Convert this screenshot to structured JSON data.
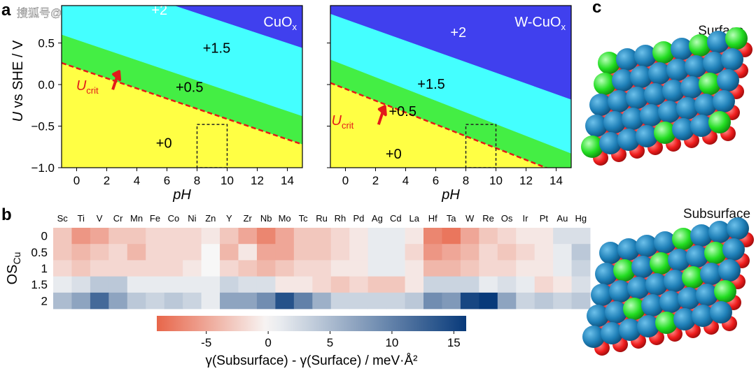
{
  "watermark": "搜狐号@铭铎科学",
  "panel_labels": {
    "a": "a",
    "b": "b",
    "c": "c"
  },
  "chart_data": [
    {
      "type": "area",
      "name": "Pourbaix diagram CuOx",
      "series_label": "CuOx",
      "xlabel": "pH",
      "ylabel": "U vs SHE / V",
      "xlim": [
        -1,
        15
      ],
      "ylim": [
        -1.0,
        0.95
      ],
      "xticks": [
        0,
        2,
        4,
        6,
        8,
        10,
        12,
        14
      ],
      "yticks": [
        -1.0,
        -0.5,
        0.0,
        0.5
      ],
      "regions": [
        {
          "label": "+0",
          "color": "#ffff44"
        },
        {
          "label": "+0.5",
          "color": "#44ee44"
        },
        {
          "label": "+1.5",
          "color": "#44ffff"
        },
        {
          "label": "+2",
          "color": "#4040ee"
        }
      ],
      "boundaries": [
        {
          "between": "+0/+0.5",
          "x": [
            -1,
            15
          ],
          "y": [
            0.26,
            -0.72
          ]
        },
        {
          "between": "+0.5/+1.5",
          "x": [
            -1,
            15
          ],
          "y": [
            0.6,
            -0.38
          ]
        },
        {
          "between": "+1.5/+2",
          "x": [
            -1,
            15
          ],
          "y": [
            1.4,
            0.44
          ]
        }
      ],
      "critical_line": {
        "label": "U",
        "subscript": "crit",
        "x": [
          -1,
          15
        ],
        "y": [
          0.26,
          -0.72
        ]
      },
      "box": {
        "x": [
          8,
          10
        ],
        "y": [
          -1.0,
          -0.48
        ]
      }
    },
    {
      "type": "area",
      "name": "Pourbaix diagram W-CuOx",
      "series_label": "W-CuOx",
      "xlabel": "pH",
      "ylabel": "",
      "xlim": [
        -1,
        15
      ],
      "ylim": [
        -1.0,
        0.95
      ],
      "xticks": [
        0,
        2,
        4,
        6,
        8,
        10,
        12,
        14
      ],
      "yticks": [
        -1.0,
        -0.5,
        0.0,
        0.5
      ],
      "regions": [
        {
          "label": "+0",
          "color": "#ffff44"
        },
        {
          "label": "+0.5",
          "color": "#44ee44"
        },
        {
          "label": "+1.5",
          "color": "#44ffff"
        },
        {
          "label": "+2",
          "color": "#4040ee"
        }
      ],
      "boundaries": [
        {
          "between": "+0/+0.5",
          "x": [
            -1,
            15
          ],
          "y": [
            0.02,
            -1.12
          ]
        },
        {
          "between": "+0.5/+1.5",
          "x": [
            -1,
            15
          ],
          "y": [
            0.3,
            -0.83
          ]
        },
        {
          "between": "+1.5/+2",
          "x": [
            -1,
            15
          ],
          "y": [
            0.85,
            -0.18
          ]
        }
      ],
      "critical_line": {
        "label": "U",
        "subscript": "crit",
        "x": [
          -1,
          15
        ],
        "y": [
          0.02,
          -1.12
        ]
      },
      "box": {
        "x": [
          8,
          10
        ],
        "y": [
          -1.0,
          -0.48
        ]
      }
    },
    {
      "type": "heatmap",
      "name": "Segregation energy heatmap",
      "x_categories": [
        "Sc",
        "Ti",
        "V",
        "Cr",
        "Mn",
        "Fe",
        "Co",
        "Ni",
        "Zn",
        "Y",
        "Zr",
        "Nb",
        "Mo",
        "Tc",
        "Ru",
        "Rh",
        "Pd",
        "Ag",
        "Cd",
        "La",
        "Hf",
        "Ta",
        "W",
        "Re",
        "Os",
        "Ir",
        "Pt",
        "Au",
        "Hg"
      ],
      "y_categories": [
        "0",
        "0.5",
        "1",
        "1.5",
        "2"
      ],
      "ylabel": "OS",
      "ylabel_sub": "Cu",
      "values": [
        [
          -3,
          -6,
          -5,
          -3,
          -3,
          -2,
          -2,
          -2,
          -1,
          -3,
          -5,
          -7,
          -5,
          -3,
          -3,
          -2,
          -1,
          1,
          1,
          -1,
          -7,
          -8,
          -5,
          -3,
          -2,
          -1,
          -1,
          2,
          2
        ],
        [
          -3,
          -4,
          -3,
          -2,
          -4,
          -2,
          -2,
          -2,
          0,
          -4,
          -1,
          -5,
          -5,
          -3,
          -3,
          -2,
          -1,
          1,
          1,
          -2,
          -6,
          -5,
          -4,
          -2,
          -3,
          -2,
          -1,
          1,
          4
        ],
        [
          -2,
          -3,
          -2,
          -2,
          -2,
          -2,
          -2,
          -1,
          0,
          -2,
          -3,
          -4,
          -3,
          -2,
          -2,
          -1,
          -1,
          1,
          1,
          -1,
          -4,
          -4,
          -3,
          -2,
          -2,
          -1,
          -1,
          1,
          3
        ],
        [
          1,
          2,
          4,
          4,
          1,
          1,
          1,
          1,
          1,
          3,
          2,
          2,
          -1,
          -1,
          -2,
          -3,
          -2,
          -3,
          -3,
          -1,
          3,
          3,
          3,
          1,
          2,
          1,
          -2,
          -1,
          2
        ],
        [
          5,
          7,
          12,
          7,
          4,
          3,
          4,
          3,
          1,
          7,
          7,
          9,
          14,
          10,
          6,
          3,
          3,
          3,
          3,
          4,
          9,
          8,
          15,
          16,
          7,
          3,
          4,
          3,
          4
        ]
      ],
      "colorbar": {
        "min": -9,
        "max": 16,
        "ticks": [
          -5,
          0,
          5,
          10,
          15
        ],
        "tick_labels": [
          "-5",
          "0",
          "5",
          "10",
          "15"
        ],
        "neg_color": "#e8664a",
        "zero_color": "#f7f7f7",
        "pos_color": "#083a7a",
        "label": "γ(Subsurface) - γ(Surface) / meV·Å²"
      }
    }
  ],
  "panel_c": {
    "surface_label": "Surface",
    "subsurface_label": "Subsurface",
    "atom_colors": {
      "cu": "#1f80b8",
      "o": "#ee1c1c",
      "w": "#22dd22"
    }
  }
}
